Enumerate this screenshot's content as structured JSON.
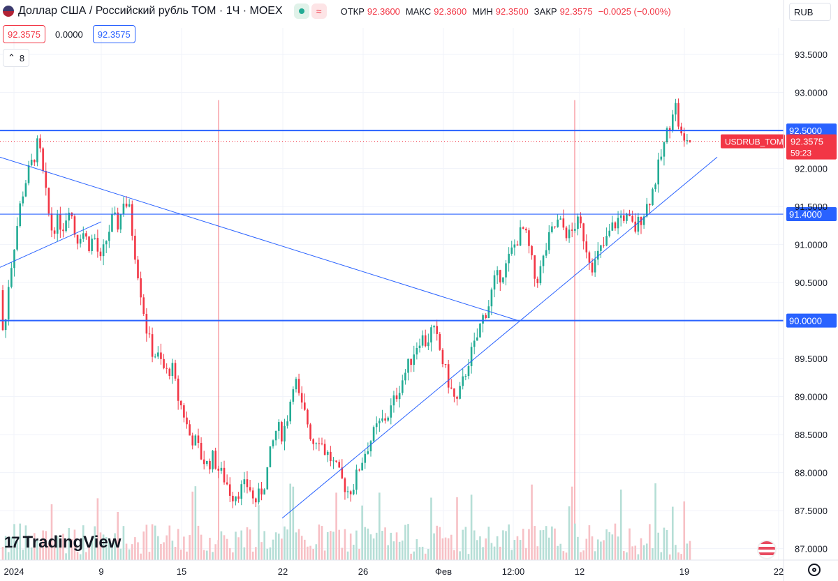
{
  "header": {
    "title": "Доллар США / Российский рубль TOM · 1Ч · MOEX",
    "open_label": "ОТКР",
    "open_value": "92.3600",
    "high_label": "МАКС",
    "high_value": "92.3600",
    "low_label": "МИН",
    "low_value": "92.3500",
    "close_label": "ЗАКР",
    "close_value": "92.3575",
    "change": "−0.0025 (−0.00%)",
    "wave_icon": "≈"
  },
  "price_tags": {
    "sell": "92.3575",
    "spread": "0.0000",
    "buy": "92.3575"
  },
  "indicators_count": "8",
  "currency_button": "RUB",
  "logo_text": "TradingView",
  "logo_mark": "17",
  "colors": {
    "up": "#22ab94",
    "down": "#f23645",
    "line": "#2962ff",
    "volume_up": "#b5ded6",
    "volume_down": "#f7c0c5"
  },
  "chart_data": {
    "type": "candlestick",
    "symbol_label": "USDRUB_TOM",
    "last_price": "92.3575",
    "countdown": "59:23",
    "y_ticks": [
      "93.5000",
      "93.0000",
      "92.0000",
      "91.5000",
      "91.0000",
      "90.5000",
      "89.5000",
      "89.0000",
      "88.5000",
      "88.0000",
      "87.5000",
      "87.0000"
    ],
    "y_range": [
      86.85,
      93.85
    ],
    "x_ticks": [
      "2024",
      "9",
      "15",
      "22",
      "26",
      "Фев",
      "12:00",
      "12",
      "19",
      "22"
    ],
    "horizontal_levels": [
      {
        "price": 92.5,
        "label": "92.5000"
      },
      {
        "price": 91.4,
        "label": "91.4000"
      },
      {
        "price": 90.0,
        "label": "90.0000"
      }
    ],
    "trend_lines": [
      {
        "from": [
          "2024-01-03",
          92.15
        ],
        "to": [
          "2024-02-05",
          90.0
        ]
      },
      {
        "from": [
          "2024-01-22",
          87.4
        ],
        "to": [
          "2024-02-20",
          92.15
        ]
      },
      {
        "from": [
          "2024-01-03",
          90.7
        ],
        "to": [
          "2024-01-09",
          91.3
        ]
      }
    ],
    "path_points": [
      [
        0,
        90.4
      ],
      [
        4,
        89.7
      ],
      [
        9,
        90.5
      ],
      [
        16,
        91.1
      ],
      [
        22,
        91.6
      ],
      [
        28,
        91.9
      ],
      [
        34,
        92.1
      ],
      [
        40,
        92.35
      ],
      [
        47,
        91.7
      ],
      [
        53,
        91.2
      ],
      [
        60,
        91.3
      ],
      [
        66,
        91.25
      ],
      [
        72,
        91.55
      ],
      [
        79,
        91.05
      ],
      [
        85,
        91.2
      ],
      [
        92,
        91.0
      ],
      [
        98,
        91.1
      ],
      [
        104,
        90.75
      ],
      [
        111,
        91.1
      ],
      [
        117,
        91.35
      ],
      [
        123,
        91.25
      ],
      [
        128,
        91.6
      ],
      [
        134,
        91.45
      ],
      [
        140,
        90.9
      ],
      [
        147,
        90.3
      ],
      [
        153,
        89.8
      ],
      [
        158,
        89.6
      ],
      [
        165,
        89.5
      ],
      [
        172,
        89.3
      ],
      [
        178,
        89.4
      ],
      [
        184,
        89.0
      ],
      [
        190,
        88.8
      ],
      [
        196,
        88.5
      ],
      [
        203,
        88.4
      ],
      [
        209,
        88.2
      ],
      [
        215,
        88.1
      ],
      [
        221,
        88.2
      ],
      [
        228,
        88.0
      ],
      [
        234,
        87.9
      ],
      [
        240,
        87.7
      ],
      [
        246,
        87.75
      ],
      [
        252,
        87.8
      ],
      [
        258,
        87.85
      ],
      [
        263,
        87.6
      ],
      [
        269,
        87.7
      ],
      [
        275,
        87.9
      ],
      [
        281,
        88.3
      ],
      [
        287,
        88.6
      ],
      [
        293,
        88.5
      ],
      [
        299,
        88.8
      ],
      [
        305,
        89.3
      ],
      [
        311,
        88.9
      ],
      [
        318,
        88.7
      ],
      [
        324,
        88.4
      ],
      [
        330,
        88.5
      ],
      [
        336,
        88.3
      ],
      [
        342,
        88.2
      ],
      [
        348,
        88.05
      ],
      [
        354,
        87.9
      ],
      [
        361,
        87.75
      ],
      [
        367,
        87.85
      ],
      [
        373,
        88.1
      ],
      [
        379,
        88.3
      ],
      [
        385,
        88.45
      ],
      [
        391,
        88.6
      ],
      [
        398,
        88.7
      ],
      [
        404,
        88.8
      ],
      [
        410,
        89.0
      ],
      [
        416,
        89.2
      ],
      [
        423,
        89.4
      ],
      [
        429,
        89.6
      ],
      [
        436,
        89.8
      ],
      [
        442,
        89.7
      ],
      [
        448,
        89.9
      ],
      [
        454,
        89.7
      ],
      [
        460,
        89.4
      ],
      [
        467,
        89.1
      ],
      [
        473,
        88.9
      ],
      [
        480,
        89.2
      ],
      [
        486,
        89.5
      ],
      [
        493,
        89.7
      ],
      [
        499,
        90.0
      ],
      [
        506,
        90.2
      ],
      [
        512,
        90.5
      ],
      [
        518,
        90.6
      ],
      [
        524,
        90.7
      ],
      [
        530,
        90.9
      ],
      [
        537,
        91.1
      ],
      [
        543,
        91.2
      ],
      [
        549,
        90.9
      ],
      [
        555,
        90.5
      ],
      [
        561,
        90.7
      ],
      [
        567,
        91.0
      ],
      [
        573,
        91.2
      ],
      [
        579,
        91.3
      ],
      [
        585,
        91.2
      ],
      [
        591,
        91.1
      ],
      [
        597,
        91.3
      ],
      [
        603,
        91.2
      ],
      [
        609,
        90.9
      ],
      [
        615,
        90.7
      ],
      [
        621,
        90.9
      ],
      [
        627,
        91.0
      ],
      [
        633,
        91.2
      ],
      [
        639,
        91.3
      ],
      [
        645,
        91.4
      ],
      [
        652,
        91.3
      ],
      [
        658,
        91.2
      ],
      [
        664,
        91.35
      ],
      [
        670,
        91.5
      ],
      [
        676,
        91.7
      ],
      [
        682,
        92.0
      ],
      [
        688,
        92.3
      ],
      [
        694,
        92.6
      ],
      [
        699,
        92.9
      ],
      [
        703,
        92.6
      ],
      [
        708,
        92.3
      ],
      [
        712,
        92.4
      ],
      [
        715,
        92.3575
      ]
    ],
    "volume_hint": "bars along bottom, spikes near 12"
  }
}
